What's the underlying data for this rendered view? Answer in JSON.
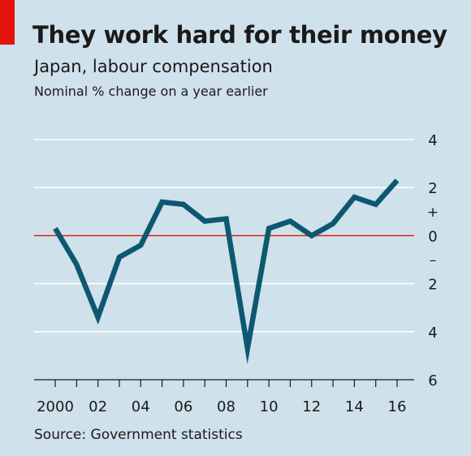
{
  "header": {
    "title": "They work hard for their money",
    "subtitle": "Japan, labour compensation",
    "units_note": "Nominal % change on a year earlier"
  },
  "footer": {
    "source": "Source: Government statistics"
  },
  "colors": {
    "background": "#cfe1ea",
    "line": "#0d5871",
    "zero_line": "#e3120b",
    "grid": "#ffffff",
    "tag": "#e3120b"
  },
  "chart_data": {
    "type": "line",
    "title": "They work hard for their money",
    "subtitle": "Japan, labour compensation",
    "ylabel": "Nominal % change on a year earlier",
    "x": [
      2000,
      2001,
      2002,
      2003,
      2004,
      2005,
      2006,
      2007,
      2008,
      2009,
      2010,
      2011,
      2012,
      2013,
      2014,
      2015,
      2016
    ],
    "series": [
      {
        "values": [
          0.3,
          -1.2,
          -3.4,
          -0.9,
          -0.4,
          1.4,
          1.3,
          0.6,
          0.7,
          -4.7,
          0.3,
          0.6,
          0.0,
          0.5,
          1.6,
          1.3,
          2.3
        ]
      }
    ],
    "ylim": [
      -6,
      4
    ],
    "yticks": [
      4,
      2,
      0,
      -2,
      -4,
      -6
    ],
    "ytick_labels": [
      "4",
      "2",
      "0",
      "2",
      "4",
      "6"
    ],
    "ytick_sign_labels": [
      "+",
      "–"
    ],
    "xtick_values": [
      2000,
      2002,
      2004,
      2006,
      2008,
      2010,
      2012,
      2014,
      2016
    ],
    "xtick_labels": [
      "2000",
      "02",
      "04",
      "06",
      "08",
      "10",
      "12",
      "14",
      "16"
    ],
    "grid": true,
    "zero_line": true
  }
}
